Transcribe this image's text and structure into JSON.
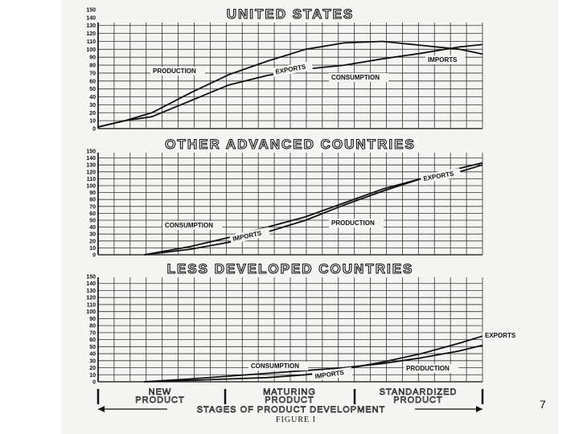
{
  "slide": {
    "page_number": "7"
  },
  "figure": {
    "caption": "FIGURE I",
    "x_axis_title": "STAGES OF PRODUCT DEVELOPMENT",
    "stages": [
      "NEW PRODUCT",
      "MATURING PRODUCT",
      "STANDARDIZED PRODUCT"
    ]
  },
  "chart_data": [
    {
      "type": "line",
      "title": "UNITED STATES",
      "ylim": [
        0,
        150
      ],
      "y_ticks": [
        0,
        10,
        20,
        30,
        40,
        50,
        60,
        70,
        80,
        90,
        100,
        110,
        120,
        130,
        140,
        150
      ],
      "grid": true,
      "x": [
        0,
        0.07,
        0.14,
        0.24,
        0.34,
        0.44,
        0.54,
        0.64,
        0.74,
        0.84,
        0.94,
        1.0
      ],
      "series": [
        {
          "name": "PRODUCTION",
          "values": [
            2,
            10,
            20,
            45,
            68,
            85,
            100,
            108,
            110,
            105,
            100,
            94
          ]
        },
        {
          "name": "CONSUMPTION",
          "values": [
            2,
            10,
            15,
            35,
            55,
            67,
            75,
            80,
            88,
            95,
            103,
            106
          ]
        }
      ],
      "labels": [
        "PRODUCTION",
        "EXPORTS",
        "IMPORTS",
        "CONSUMPTION"
      ]
    },
    {
      "type": "line",
      "title": "OTHER ADVANCED COUNTRIES",
      "ylim": [
        0,
        150
      ],
      "y_ticks": [
        0,
        10,
        20,
        30,
        40,
        50,
        60,
        70,
        80,
        90,
        100,
        110,
        120,
        130,
        140,
        150
      ],
      "grid": true,
      "x": [
        0.12,
        0.24,
        0.34,
        0.44,
        0.54,
        0.64,
        0.74,
        0.84,
        0.94,
        1.0
      ],
      "series": [
        {
          "name": "CONSUMPTION",
          "values": [
            0,
            12,
            25,
            40,
            55,
            75,
            95,
            110,
            125,
            133
          ]
        },
        {
          "name": "PRODUCTION",
          "values": [
            0,
            8,
            18,
            33,
            50,
            72,
            92,
            110,
            120,
            130
          ]
        }
      ],
      "labels": [
        "CONSUMPTION",
        "IMPORTS",
        "PRODUCTION",
        "EXPORTS"
      ]
    },
    {
      "type": "line",
      "title": "LESS DEVELOPED COUNTRIES",
      "ylim": [
        0,
        150
      ],
      "y_ticks": [
        0,
        10,
        20,
        30,
        40,
        50,
        60,
        70,
        80,
        90,
        100,
        110,
        120,
        130,
        140,
        150
      ],
      "grid": true,
      "x": [
        0.12,
        0.24,
        0.34,
        0.44,
        0.54,
        0.64,
        0.74,
        0.84,
        0.94,
        1.0
      ],
      "series": [
        {
          "name": "CONSUMPTION",
          "values": [
            0,
            4,
            8,
            12,
            16,
            20,
            26,
            34,
            44,
            52
          ]
        },
        {
          "name": "PRODUCTION",
          "values": [
            0,
            2,
            4,
            6,
            10,
            18,
            28,
            40,
            55,
            65
          ]
        }
      ],
      "labels": [
        "CONSUMPTION",
        "IMPORTS",
        "PRODUCTION",
        "EXPORTS"
      ]
    }
  ]
}
